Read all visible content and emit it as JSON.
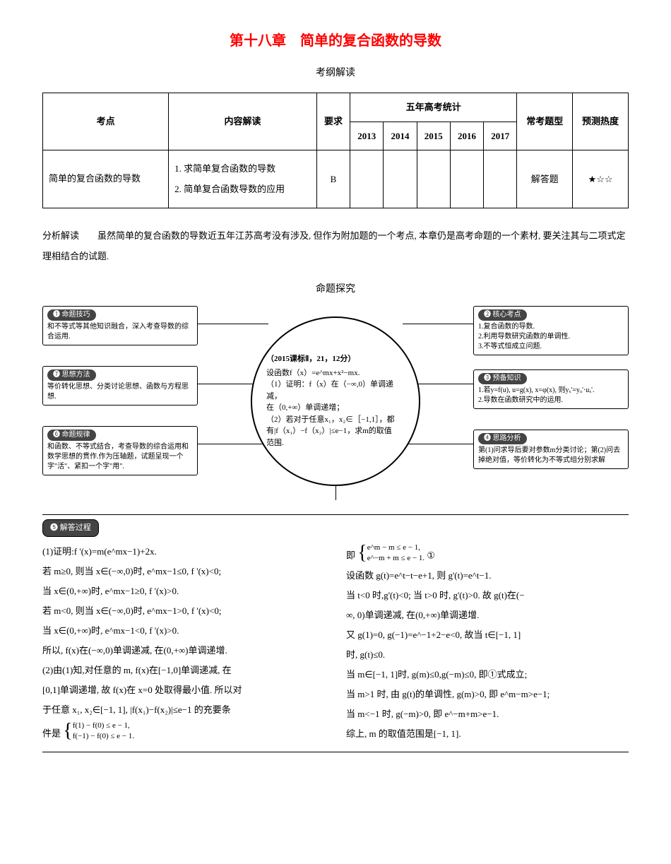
{
  "title": "第十八章　简单的复合函数的导数",
  "subtitle": "考纲解读",
  "table": {
    "headers": {
      "col1": "考点",
      "col2": "内容解读",
      "col3": "要求",
      "col4": "五年高考统计",
      "col5": "常考题型",
      "col6": "预测热度",
      "years": [
        "2013",
        "2014",
        "2015",
        "2016",
        "2017"
      ]
    },
    "row": {
      "topic": "简单的复合函数的导数",
      "content": "1. 求简单复合函数的导数\n2. 简单复合函数导数的应用",
      "req": "B",
      "y2013": "",
      "y2014": "",
      "y2015": "",
      "y2016": "",
      "y2017": "",
      "type": "解答题",
      "heat": "★☆☆"
    }
  },
  "analysis": "分析解读　　虽然简单的复合函数的导数近五年江苏高考没有涉及, 但作为附加题的一个考点, 本章仍是高考命题的一个素材, 要关注其与二项式定理相结合的试题.",
  "diagram_title": "命题探究",
  "center": {
    "header": "（2015课标Ⅱ，21，12分）",
    "l1": "设函数f（x）=e^mx+x²−mx.",
    "l2": "（1）证明：f（x）在（−∞,0）单调递减，",
    "l3": "在（0,+∞）单调递增；",
    "l4": "（2）若对于任意x₁，x₂∈［−1,1］，都",
    "l5": "有|f（x₁）−f（x₂）|≤e−1，求m的取值",
    "l6": "范围."
  },
  "nodes": {
    "n1": {
      "label": "❶ 命题技巧",
      "text": "和不等式等其他知识融合，深入考查导数的综合运用."
    },
    "n7": {
      "label": "❼ 思想方法",
      "text": "等价转化思想、分类讨论思想、函数与方程思想."
    },
    "n6": {
      "label": "❻ 命题规律",
      "text": "和函数、不等式结合，考查导数的综合运用和数学思想的贯作.作为压轴题，试题呈现一个字\"活\"、紧扣一个字\"用\"."
    },
    "n2": {
      "label": "❷ 核心考点",
      "text": "1.复合函数的导数.\n2.利用导数研究函数的单调性.\n3.不等式恒成立问题."
    },
    "n3": {
      "label": "❸ 预备知识",
      "text": "1.若y=f(u), u=g(x), x=φ(x), 则yₓ'=yᵤ'·uₓ'.\n2.导数在函数研究中的运用."
    },
    "n4": {
      "label": "❹ 思路分析",
      "text": "第(1)问求导后要对参数m分类讨论；第(2)问去掉绝对值，等价转化为不等式组分别求解"
    }
  },
  "solution_label": "❺ 解答过程",
  "sol_left": {
    "p1": "(1)证明:f '(x)=m(e^mx−1)+2x.",
    "p2": "若 m≥0, 则当 x∈(−∞,0)时, e^mx−1≤0,  f '(x)<0;",
    "p3": "当 x∈(0,+∞)时, e^mx−1≥0,  f '(x)>0.",
    "p4": "若 m<0, 则当 x∈(−∞,0)时, e^mx−1>0,  f '(x)<0;",
    "p5": "当 x∈(0,+∞)时, e^mx−1<0,  f '(x)>0.",
    "p6": "所以,  f(x)在(−∞,0)单调递减, 在(0,+∞)单调递增.",
    "p7": "(2)由(1)知,对任意的 m,  f(x)在[−1,0]单调递减, 在",
    "p8": "[0,1]单调递增, 故 f(x)在 x=0 处取得最小值. 所以对",
    "p9": "于任意 x₁, x₂∈[−1, 1], |f(x₁)−f(x₂)|≤e−1 的充要条",
    "p10_prefix": "件是",
    "sys1a": "f(1) − f(0) ≤ e − 1,",
    "sys1b": "f(−1) − f(0) ≤ e − 1."
  },
  "sol_right": {
    "p0_prefix": "即",
    "sys2a": "e^m − m ≤ e − 1,",
    "sys2b": "e^−m + m ≤ e − 1.",
    "circ": "①",
    "p1": "设函数 g(t)=e^t−t−e+1, 则 g'(t)=e^t−1.",
    "p2": "当 t<0 时,g'(t)<0; 当 t>0 时, g'(t)>0. 故 g(t)在(−",
    "p3": "∞, 0)单调递减, 在(0,+∞)单调递增.",
    "p4": "又 g(1)=0, g(−1)=e^−1+2−e<0, 故当 t∈[−1, 1]",
    "p5": "时, g(t)≤0.",
    "p6": "当 m∈[−1, 1]时, g(m)≤0,g(−m)≤0, 即①式成立;",
    "p7": "当 m>1 时, 由 g(t)的单调性, g(m)>0, 即 e^m−m>e−1;",
    "p8": "当 m<−1 时, g(−m)>0, 即 e^−m+m>e−1.",
    "p9": "综上, m 的取值范围是[−1, 1]."
  }
}
